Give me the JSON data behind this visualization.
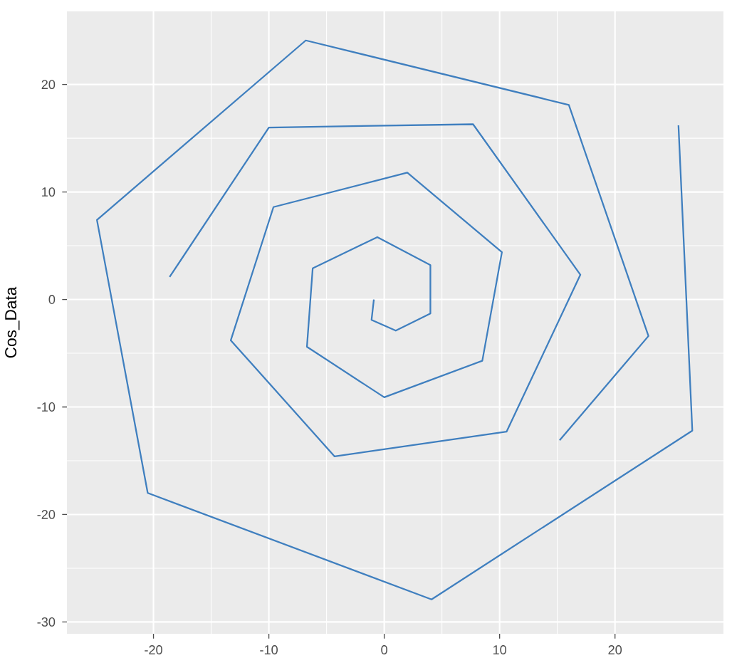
{
  "chart_data": {
    "type": "line",
    "ylabel": "Cos_Data",
    "xlim": [
      -27.5,
      29.4
    ],
    "ylim": [
      -31.1,
      26.8
    ],
    "xticks": [
      -20,
      -10,
      0,
      10,
      20
    ],
    "yticks": [
      -30,
      -20,
      -10,
      0,
      10,
      20
    ],
    "grid": true,
    "series": [
      {
        "color": "#3f7fbf",
        "x": [
          -0.9,
          -1.1,
          1.0,
          4.0,
          4.0,
          -0.6,
          -6.2,
          -6.7,
          0,
          8.5,
          10.2,
          2.0,
          -9.6,
          -13.3,
          -4.3,
          10.6,
          17.0,
          7.7,
          -10.0,
          -18.6,
          null,
          15.2,
          22.9,
          16.0,
          -6.8,
          -24.9,
          -20.5,
          4.1,
          26.7,
          25.5
        ],
        "values": [
          0,
          -1.9,
          -2.9,
          -1.3,
          3.2,
          5.8,
          2.9,
          -4.4,
          -9.1,
          -5.7,
          4.4,
          11.8,
          8.6,
          -3.8,
          -14.6,
          -12.3,
          2.3,
          16.3,
          16.0,
          2.1,
          null,
          -13.1,
          -3.4,
          18.1,
          24.1,
          7.4,
          -18.0,
          -27.9,
          -12.2,
          16.2
        ]
      }
    ]
  }
}
